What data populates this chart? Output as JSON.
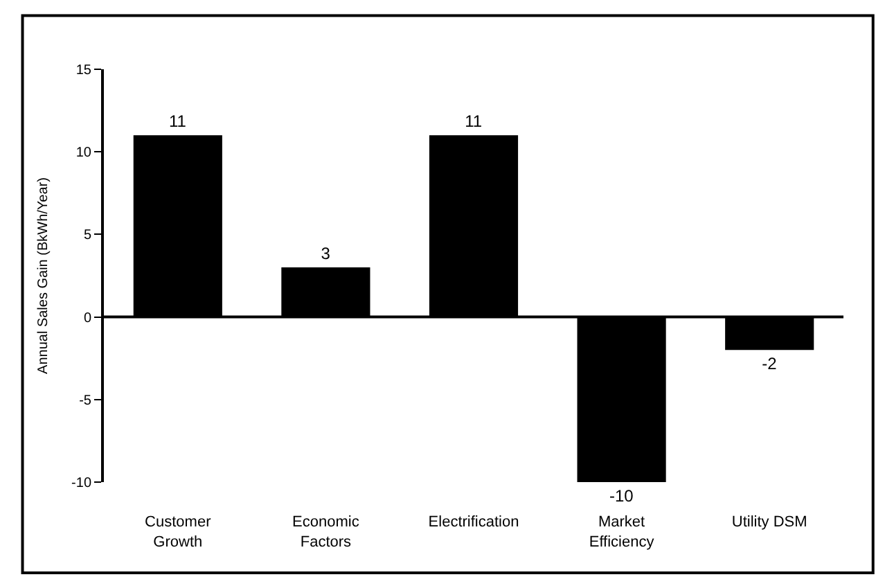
{
  "chart_data": {
    "type": "bar",
    "ylabel": "Annual Sales Gain (BkWh/Year)",
    "categories": [
      "Customer\nGrowth",
      "Economic\nFactors",
      "Electrification",
      "Market\nEfficiency",
      "Utility DSM"
    ],
    "values": [
      11,
      3,
      11,
      -10,
      -2
    ],
    "color": "#000000",
    "data_labels": true,
    "ylim": [
      -10,
      15
    ],
    "yticks": [
      -10,
      -5,
      0,
      5,
      10,
      15
    ],
    "legend": false,
    "ref_lines": [
      {
        "axis": "y",
        "value": 0,
        "color": "#000000",
        "line_style": "solid"
      }
    ]
  }
}
